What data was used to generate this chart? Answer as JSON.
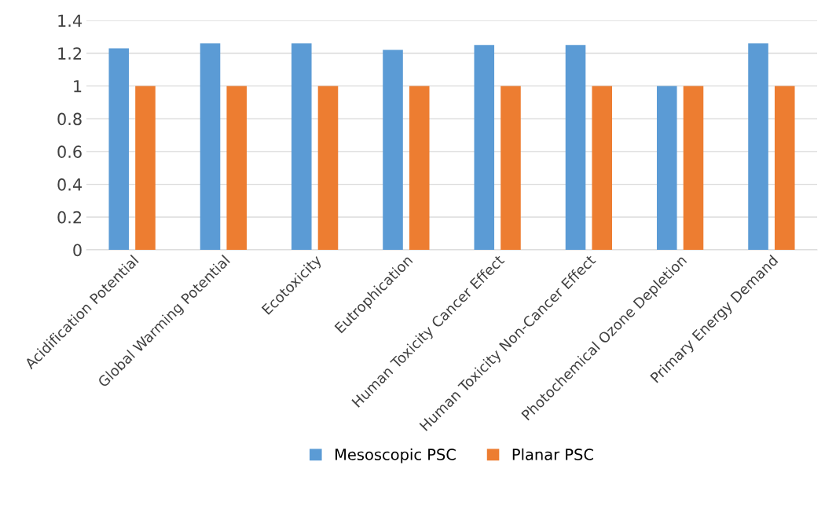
{
  "chart_data": {
    "type": "bar",
    "categories": [
      "Acidification Potential",
      "Global Warming Potential",
      "Ecotoxicity",
      "Eutrophication",
      "Human Toxicity Cancer Effect",
      "Human Toxicity Non-Cancer Effect",
      "Photochemical Ozone Depletion",
      "Primary Energy Demand"
    ],
    "series": [
      {
        "name": "Mesoscopic PSC",
        "color": "#5b9bd5",
        "values": [
          1.23,
          1.26,
          1.26,
          1.22,
          1.25,
          1.25,
          1.0,
          1.26
        ]
      },
      {
        "name": "Planar PSC",
        "color": "#ed7d31",
        "values": [
          1,
          1,
          1,
          1,
          1,
          1,
          1,
          1
        ]
      }
    ],
    "ylim": [
      0,
      1.4
    ],
    "yticks": [
      0,
      0.2,
      0.4,
      0.6,
      0.8,
      1,
      1.2,
      1.4
    ],
    "grid": "y",
    "legend": "bottom"
  }
}
